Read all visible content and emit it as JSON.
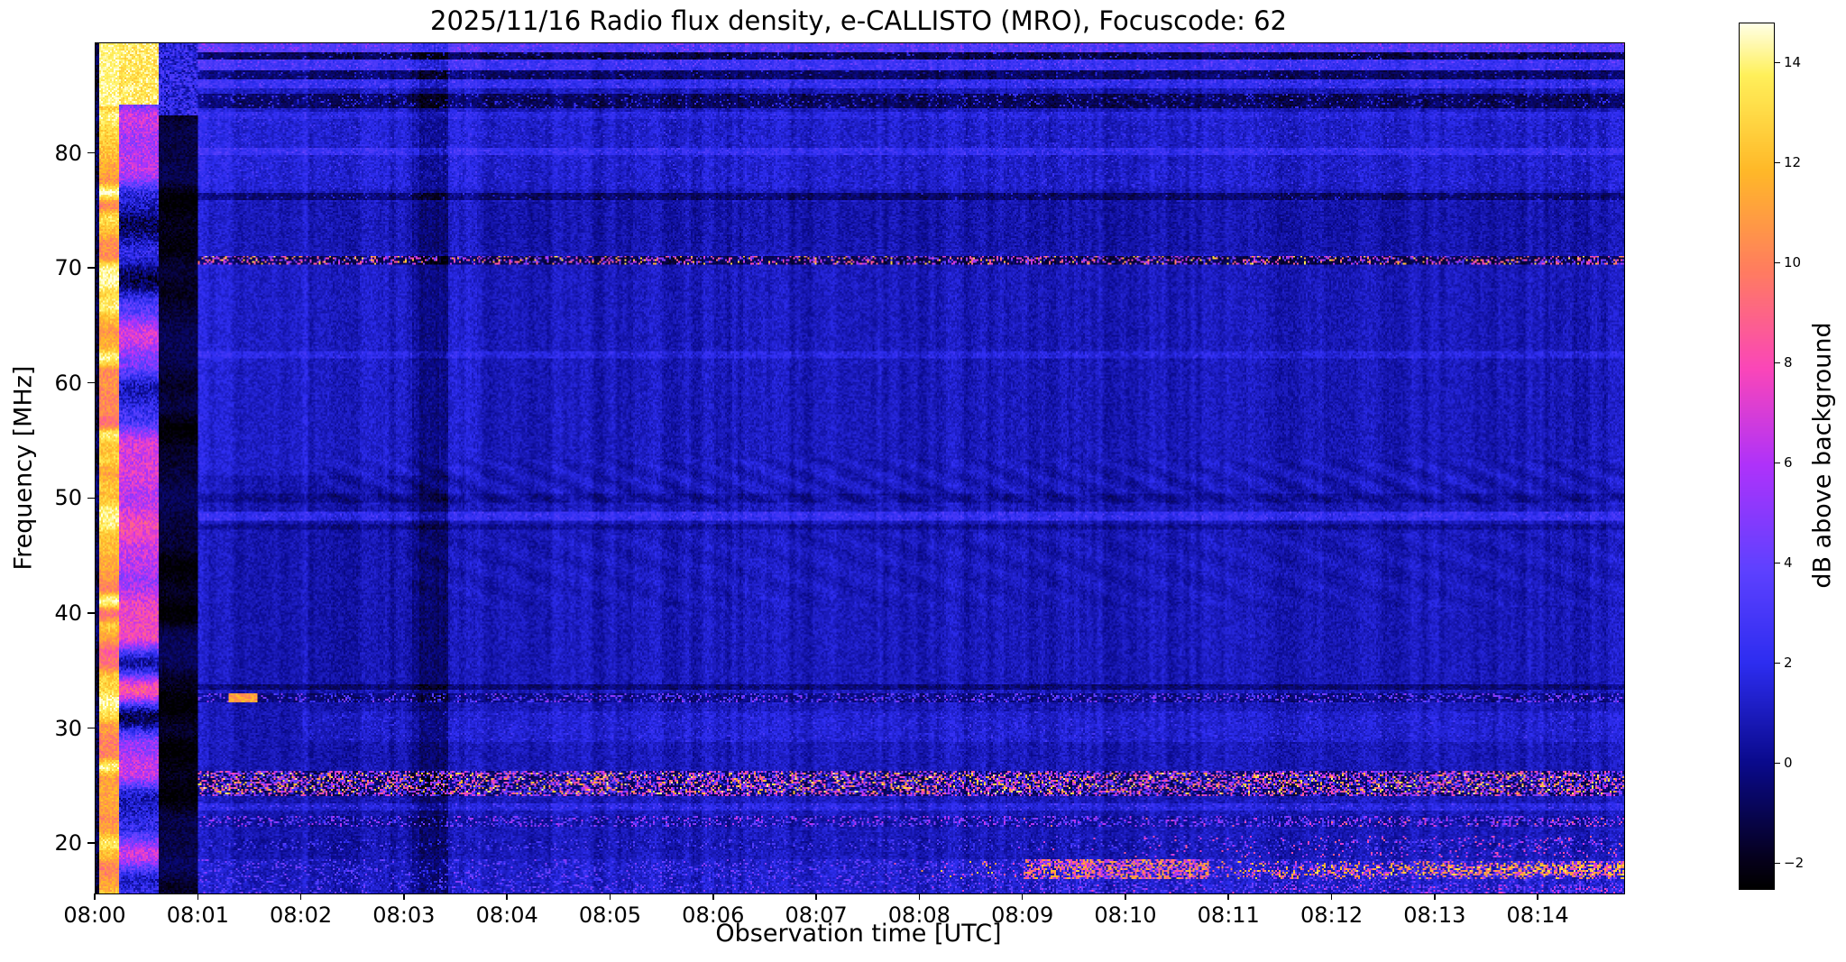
{
  "chart_data": {
    "type": "heatmap",
    "title": "2025/11/16  Radio flux density, e-CALLISTO (MRO), Focuscode: 62",
    "xlabel": "Observation time [UTC]",
    "ylabel": "Frequency [MHz]",
    "colorbar_label": "dB above background",
    "x_axis": {
      "tick_labels": [
        "08:00",
        "08:01",
        "08:02",
        "08:03",
        "08:04",
        "08:05",
        "08:06",
        "08:07",
        "08:08",
        "08:09",
        "08:10",
        "08:11",
        "08:12",
        "08:13",
        "08:14"
      ],
      "t_start": 0,
      "t_end": 14.83,
      "tick_step_min": 1
    },
    "y_axis": {
      "tick_values": [
        20,
        30,
        40,
        50,
        60,
        70,
        80
      ],
      "tick_labels": [
        "20",
        "30",
        "40",
        "50",
        "60",
        "70",
        "80"
      ],
      "f_min": 15.7,
      "f_max": 89.6
    },
    "colorbar": {
      "tick_values": [
        -2,
        0,
        2,
        4,
        6,
        8,
        10,
        12,
        14
      ],
      "tick_labels": [
        "−2",
        "0",
        "2",
        "4",
        "6",
        "8",
        "10",
        "12",
        "14"
      ],
      "v_min": -2.5,
      "v_max": 14.8
    },
    "colormap": [
      {
        "t": 0.0,
        "c": "#000000"
      },
      {
        "t": 0.03,
        "c": "#050019"
      },
      {
        "t": 0.145,
        "c": "#0a0a8c"
      },
      {
        "t": 0.26,
        "c": "#2d2df0"
      },
      {
        "t": 0.37,
        "c": "#5f41ff"
      },
      {
        "t": 0.49,
        "c": "#af32fa"
      },
      {
        "t": 0.6,
        "c": "#fa46b9"
      },
      {
        "t": 0.715,
        "c": "#ff7d5f"
      },
      {
        "t": 0.83,
        "c": "#ffb928"
      },
      {
        "t": 0.94,
        "c": "#fff05a"
      },
      {
        "t": 1.0,
        "c": "#ffffe6"
      }
    ],
    "render": {
      "data_start": 0.99,
      "background": {
        "base": 0.9,
        "noise": 0.65,
        "col_noise": 0.45
      },
      "segments": [
        {
          "t0": 0.0,
          "t1": 0.025,
          "base": -1.2,
          "band_amp": 0.8,
          "band_scale": 0.6,
          "noise": 0.8,
          "seed": 11
        },
        {
          "t0": 0.025,
          "t1": 0.215,
          "base": 11.8,
          "band_amp": 3.0,
          "band_scale": 0.9,
          "noise": 1.0,
          "seed": 21,
          "top": {
            "f_min": 84.2,
            "value": 14.2,
            "noise": 0.8
          }
        },
        {
          "t0": 0.215,
          "t1": 0.6,
          "base": 3.8,
          "band_amp": 5.0,
          "band_scale": 0.42,
          "noise": 1.4,
          "seed": 33,
          "top": {
            "f_min": 84.3,
            "value": 13.6,
            "noise": 1.2
          }
        },
        {
          "t0": 0.6,
          "t1": 0.99,
          "base": -1.7,
          "band_amp": 0.9,
          "band_scale": 0.5,
          "noise": 0.6,
          "seed": 44,
          "top": {
            "f_min": 83.4,
            "value": 1.8,
            "noise": 1.8
          }
        }
      ],
      "hbands": [
        {
          "f0": 88.95,
          "f1": 89.6,
          "delta": 2.2,
          "sp": 0.3,
          "lo": 2.5,
          "hi": 5.5
        },
        {
          "f0": 88.25,
          "f1": 88.95,
          "delta": -2.1,
          "sp": 0.06,
          "lo": 0.5,
          "hi": 2.5
        },
        {
          "f0": 87.3,
          "f1": 88.25,
          "delta": 1.5,
          "sp": 0.22,
          "lo": 2.0,
          "hi": 4.5
        },
        {
          "f0": 86.6,
          "f1": 87.3,
          "delta": -1.6,
          "sp": 0.05,
          "lo": 0.5,
          "hi": 2.0
        },
        {
          "f0": 85.7,
          "f1": 86.6,
          "delta": 1.1,
          "sp": 0.18,
          "lo": 1.8,
          "hi": 4.0
        },
        {
          "f0": 84.0,
          "f1": 85.3,
          "delta": -1.8,
          "sp": 0.12,
          "lo": 0.5,
          "hi": 2.8
        },
        {
          "f0": 83.1,
          "f1": 83.7,
          "delta": 0.7,
          "sp": 0.1,
          "lo": 1.5,
          "hi": 3.0
        },
        {
          "f0": 77.0,
          "f1": 83.1,
          "delta": 0.3,
          "sp": 0.07,
          "lo": 1.5,
          "hi": 2.8
        },
        {
          "f0": 79.95,
          "f1": 80.6,
          "delta": 0.9,
          "sp": 0.15,
          "lo": 1.8,
          "hi": 3.4
        },
        {
          "f0": 76.0,
          "f1": 76.6,
          "delta": -1.5,
          "sp": 0.04,
          "lo": 0.5,
          "hi": 2.0
        },
        {
          "f0": 71.4,
          "f1": 75.9,
          "delta": -0.25
        },
        {
          "f0": 70.45,
          "f1": 71.2,
          "delta": -2.0,
          "sp": 0.3,
          "lo": 2.0,
          "hi": 9.5
        },
        {
          "f0": 70.45,
          "f1": 71.2,
          "sp": 0.05,
          "lo": 10.0,
          "hi": 13.5
        },
        {
          "f0": 62.2,
          "f1": 62.8,
          "delta": 0.7,
          "sp": 0.07,
          "lo": 1.5,
          "hi": 3.0
        },
        {
          "f0": 52.0,
          "f1": 89.6,
          "delta": 0.45,
          "t0": 0.99,
          "t1": 3.7
        },
        {
          "f0": 49.7,
          "f1": 50.4,
          "delta": -0.6
        },
        {
          "f0": 48.15,
          "f1": 48.95,
          "delta": 1.2,
          "sp": 0.2,
          "lo": 1.8,
          "hi": 3.8
        },
        {
          "f0": 47.3,
          "f1": 47.8,
          "delta": -0.7
        },
        {
          "f0": 33.4,
          "f1": 33.9,
          "delta": -1.2
        },
        {
          "f0": 32.2,
          "f1": 33.05,
          "delta": -1.0,
          "sp": 0.25,
          "lo": 1.5,
          "hi": 5.5
        },
        {
          "f0": 28.8,
          "f1": 31.5,
          "delta": 0.4,
          "sp": 0.1,
          "lo": 1.0,
          "hi": 3.0,
          "t0": 2.0
        },
        {
          "f0": 24.1,
          "f1": 26.35,
          "delta": -1.5,
          "sp": 0.5,
          "lo": 1.0,
          "hi": 9.0
        },
        {
          "f0": 24.3,
          "f1": 26.1,
          "sp": 0.13,
          "lo": 9.0,
          "hi": 14.5
        },
        {
          "f0": 22.9,
          "f1": 23.45,
          "delta": 0.7,
          "sp": 0.15,
          "lo": 1.5,
          "hi": 4.0
        },
        {
          "f0": 21.4,
          "f1": 22.3,
          "delta": -0.5,
          "sp": 0.3,
          "lo": 1.5,
          "hi": 6.5
        },
        {
          "f0": 21.4,
          "f1": 22.2,
          "sp": 0.1,
          "lo": 4.0,
          "hi": 10.0,
          "t0": 8.0,
          "ramp": 1
        },
        {
          "f0": 19.4,
          "f1": 20.35,
          "delta": -0.2,
          "sp": 0.18,
          "lo": 1.0,
          "hi": 4.0
        },
        {
          "f0": 18.8,
          "f1": 20.6,
          "sp": 0.13,
          "lo": 3.0,
          "hi": 9.0,
          "t0": 8.5,
          "ramp": 1
        },
        {
          "f0": 15.7,
          "f1": 18.6,
          "delta": 0.2,
          "sp": 0.25,
          "lo": 1.0,
          "hi": 5.0
        },
        {
          "f0": 16.8,
          "f1": 18.45,
          "sp": 0.4,
          "lo": 4.0,
          "hi": 13.0,
          "t0": 7.5,
          "ramp": 1
        },
        {
          "f0": 16.9,
          "f1": 18.6,
          "sp": 0.6,
          "lo": 5.0,
          "hi": 12.0,
          "t0": 9.0,
          "t1": 10.8
        },
        {
          "f0": 17.15,
          "f1": 18.15,
          "sp": 0.55,
          "lo": 7.0,
          "hi": 14.0,
          "t0": 11.0,
          "ramp": 1
        },
        {
          "f0": 15.7,
          "f1": 16.45,
          "sp": 0.25,
          "lo": 2.0,
          "hi": 8.0,
          "t0": 8.0,
          "ramp": 1
        }
      ],
      "wavy": [
        {
          "f0": 49.5,
          "f1": 53.5,
          "amp": 0.4,
          "pt": 0.5,
          "pf": 2.0,
          "t0": 2.2
        },
        {
          "f0": 40.5,
          "f1": 47.0,
          "amp": 0.25,
          "pt": 0.7,
          "pf": 2.6,
          "t0": 3.0
        }
      ],
      "blobs": [
        {
          "t0": 1.28,
          "t1": 1.56,
          "f0": 32.2,
          "f1": 33.0,
          "value": 11.0
        }
      ],
      "vbands": [
        {
          "t0": 0.99,
          "t1": 1.1,
          "delta": 0.3
        },
        {
          "t0": 2.05,
          "t1": 3.06,
          "delta": -0.3
        },
        {
          "t0": 3.06,
          "t1": 3.42,
          "delta": -1.2
        },
        {
          "t0": 3.14,
          "t1": 3.32,
          "delta": -0.5
        }
      ]
    }
  }
}
